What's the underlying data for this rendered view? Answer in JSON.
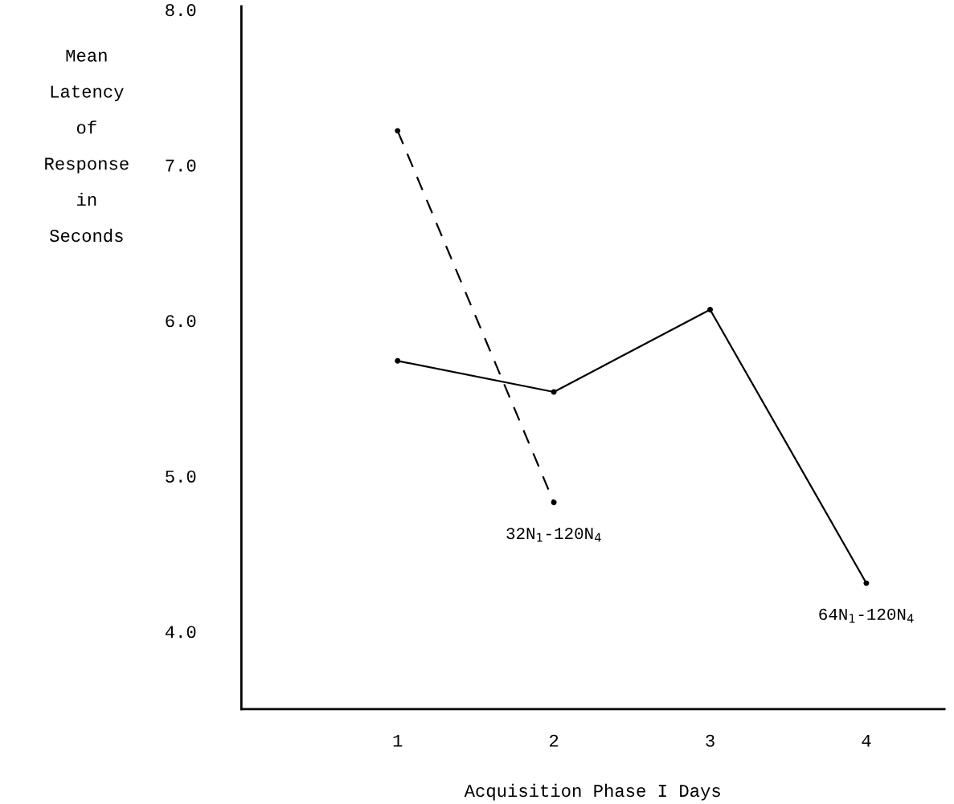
{
  "chart_data": {
    "type": "line",
    "xlabel": "Acquisition Phase I Days",
    "ylabel": "Mean\nLatency\nof\nResponse\nin\nSeconds",
    "xlim": [
      0,
      4.5
    ],
    "xticks": [
      1,
      2,
      3,
      4
    ],
    "ylim": [
      3.5,
      8.02
    ],
    "yticks": [
      {
        "value": 4,
        "label": "4.0"
      },
      {
        "value": 5,
        "label": "5.0"
      },
      {
        "value": 6,
        "label": "6.0"
      },
      {
        "value": 7,
        "label": "7.0"
      },
      {
        "value": 8,
        "label": "8.0"
      }
    ],
    "marker": "circle",
    "grid": false,
    "legend": false,
    "series": [
      {
        "name": "32N$_{1}$-120N$_{4}$",
        "color": "#000000",
        "line_style": "dashed",
        "x": [
          1,
          2
        ],
        "values": [
          7.22,
          4.83
        ]
      },
      {
        "name": "64N$_{1}$-120N$_{4}$",
        "color": "#000000",
        "line_style": "solid",
        "x": [
          1,
          2,
          3,
          4
        ],
        "values": [
          5.74,
          5.54,
          6.07,
          4.31
        ]
      }
    ]
  }
}
